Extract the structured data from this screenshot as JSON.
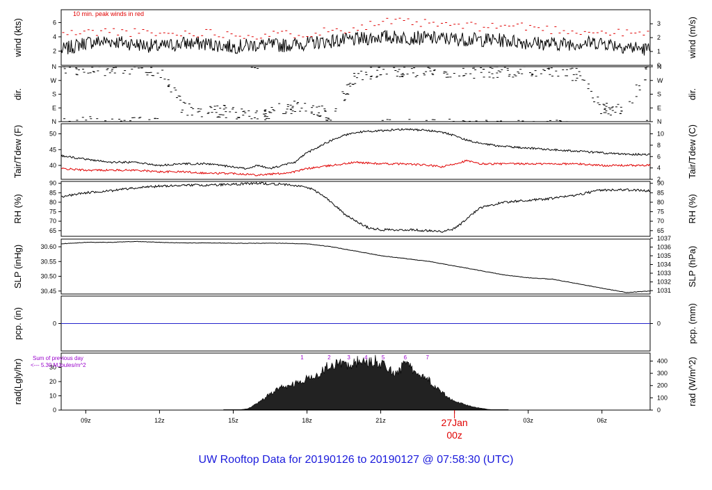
{
  "title": "UW Rooftop Data for 20190126  to  20190127 @ 07:58:30  (UTC)",
  "colors": {
    "title": "#1a1adc",
    "peak": "#e00000",
    "tdew": "#e00000",
    "pcp_line": "#2222cc",
    "annotation": "#9900cc",
    "date_marker": "#e00000",
    "trace": "#000000"
  },
  "x_axis": {
    "range_hours": [
      -16.0,
      7.96
    ],
    "ticks": [
      {
        "hour": -15,
        "label": "09z"
      },
      {
        "hour": -12,
        "label": "12z"
      },
      {
        "hour": -9,
        "label": "15z"
      },
      {
        "hour": -6,
        "label": "18z"
      },
      {
        "hour": -3,
        "label": "21z"
      },
      {
        "hour": 0,
        "label": "00z"
      },
      {
        "hour": 3,
        "label": "03z"
      },
      {
        "hour": 6,
        "label": "06z"
      }
    ],
    "date_label": "27Jan",
    "date_sublabel": "00z"
  },
  "chart_data": [
    {
      "id": "wind",
      "type": "line",
      "ylabel_left": "wind (kts)",
      "ylabel_right": "wind (m/s)",
      "ylim": [
        0,
        7.8
      ],
      "left_ticks": [
        {
          "v": 2,
          "label": "2"
        },
        {
          "v": 4,
          "label": "4"
        },
        {
          "v": 6,
          "label": "6"
        }
      ],
      "right_ticks": [
        {
          "v": 0,
          "label": "0"
        },
        {
          "v": 1.944,
          "label": "1"
        },
        {
          "v": 3.888,
          "label": "2"
        },
        {
          "v": 5.832,
          "label": "3"
        }
      ],
      "annotation": "10 min. peak winds in red",
      "series": [
        {
          "name": "",
          "x": [
            -16,
            -15,
            -14,
            -13,
            -12,
            -11,
            -10,
            -9,
            -8,
            -7,
            -6,
            -5,
            -4,
            -3,
            -2,
            -1,
            0,
            1,
            2,
            3,
            4,
            5,
            6,
            7,
            7.96
          ],
          "y": [
            2.1,
            3.2,
            3.4,
            3.0,
            2.6,
            3.1,
            3.0,
            2.6,
            2.9,
            2.8,
            3.1,
            3.4,
            3.6,
            4.0,
            3.9,
            3.8,
            3.7,
            3.6,
            3.5,
            3.2,
            3.0,
            3.1,
            3.2,
            2.6,
            2.2
          ]
        },
        {
          "name": "peak",
          "x": [
            -16,
            -14,
            -12,
            -10,
            -8,
            -6,
            -4,
            -2.8,
            -2,
            -1,
            0,
            1,
            2.5,
            4,
            6,
            7.96
          ],
          "y": [
            4.4,
            4.8,
            4.4,
            4.6,
            4.2,
            4.5,
            5.3,
            6.1,
            6.0,
            5.8,
            5.6,
            5.4,
            5.6,
            5.0,
            4.6,
            4.4
          ]
        }
      ]
    },
    {
      "id": "dir",
      "type": "scatter",
      "ylabel_left": "dir.",
      "ylabel_right": "dir.",
      "ylim": [
        0,
        360
      ],
      "left_ticks": [
        {
          "v": 0,
          "label": "N"
        },
        {
          "v": 90,
          "label": "E"
        },
        {
          "v": 180,
          "label": "S"
        },
        {
          "v": 270,
          "label": "W"
        },
        {
          "v": 360,
          "label": "N"
        }
      ],
      "right_ticks": [
        {
          "v": 0,
          "label": "N"
        },
        {
          "v": 90,
          "label": "E"
        },
        {
          "v": 180,
          "label": "S"
        },
        {
          "v": 270,
          "label": "W"
        },
        {
          "v": 360,
          "label": "N"
        }
      ],
      "series": [
        {
          "name": "",
          "x": [
            -16,
            -15,
            -14,
            -13,
            -12,
            -11,
            -10,
            -9,
            -8,
            -7,
            -6,
            -5,
            -4,
            -3,
            -2,
            -1,
            0,
            1,
            2,
            3,
            4,
            5,
            6,
            7,
            7.96
          ],
          "y": [
            340,
            350,
            345,
            350,
            340,
            80,
            70,
            60,
            30,
            90,
            100,
            40,
            300,
            330,
            340,
            330,
            335,
            320,
            340,
            330,
            330,
            310,
            80,
            90,
            360
          ]
        }
      ]
    },
    {
      "id": "temp",
      "type": "line",
      "ylabel_left": "Tair/Tdew (F)",
      "ylabel_right": "Tair/Tdew (C)",
      "ylim": [
        35.6,
        53.2
      ],
      "left_ticks": [
        {
          "v": 40,
          "label": "40"
        },
        {
          "v": 45,
          "label": "45"
        },
        {
          "v": 50,
          "label": "50"
        }
      ],
      "right_ticks": [
        {
          "v": 35.6,
          "label": "2"
        },
        {
          "v": 39.2,
          "label": "4"
        },
        {
          "v": 42.8,
          "label": "6"
        },
        {
          "v": 46.4,
          "label": "8"
        },
        {
          "v": 50.0,
          "label": "10"
        }
      ],
      "series": [
        {
          "name": "",
          "x": [
            -16,
            -15,
            -14,
            -13,
            -12,
            -11,
            -10,
            -9,
            -8.5,
            -8,
            -7.5,
            -7,
            -6.5,
            -6,
            -5.5,
            -5,
            -4.5,
            -4,
            -3,
            -2,
            -1,
            -0.5,
            0,
            0.5,
            1,
            2,
            3,
            4,
            5,
            6,
            7,
            7.96
          ],
          "y": [
            43.0,
            42.0,
            41.0,
            41.0,
            40.0,
            40.5,
            40.5,
            39.5,
            39.0,
            40.0,
            39.0,
            40.0,
            41.0,
            44.0,
            46.0,
            48.0,
            49.5,
            50.5,
            51.0,
            51.5,
            51.0,
            50.5,
            49.5,
            48.0,
            47.0,
            46.0,
            45.5,
            45.0,
            44.5,
            44.0,
            43.5,
            43.5
          ]
        },
        {
          "name": "",
          "x": [
            -16,
            -15,
            -14,
            -13,
            -12,
            -11,
            -10,
            -9,
            -8,
            -7,
            -6.5,
            -6,
            -5,
            -4,
            -3,
            -2,
            -1,
            -0.5,
            0,
            0.5,
            1,
            2,
            3,
            4,
            5,
            6,
            7,
            7.96
          ],
          "y": [
            39.0,
            38.5,
            38.5,
            38.5,
            38.0,
            38.0,
            37.5,
            37.5,
            37.0,
            37.5,
            38.0,
            39.0,
            40.0,
            41.0,
            40.5,
            40.5,
            40.0,
            39.5,
            40.5,
            41.5,
            40.5,
            40.5,
            40.5,
            40.5,
            40.5,
            40.0,
            40.0,
            40.0
          ]
        }
      ]
    },
    {
      "id": "rh",
      "type": "line",
      "ylabel_left": "RH (%)",
      "ylabel_right": "RH (%)",
      "ylim": [
        62,
        91
      ],
      "left_ticks": [
        {
          "v": 65,
          "label": "65"
        },
        {
          "v": 70,
          "label": "70"
        },
        {
          "v": 75,
          "label": "75"
        },
        {
          "v": 80,
          "label": "80"
        },
        {
          "v": 85,
          "label": "85"
        },
        {
          "v": 90,
          "label": "90"
        }
      ],
      "right_ticks": [
        {
          "v": 65,
          "label": "65"
        },
        {
          "v": 70,
          "label": "70"
        },
        {
          "v": 75,
          "label": "75"
        },
        {
          "v": 80,
          "label": "80"
        },
        {
          "v": 85,
          "label": "85"
        },
        {
          "v": 90,
          "label": "90"
        }
      ],
      "series": [
        {
          "name": "",
          "x": [
            -16,
            -15,
            -14,
            -13,
            -12,
            -11,
            -10,
            -9,
            -8,
            -7,
            -6,
            -5.5,
            -5,
            -4.5,
            -4,
            -3.5,
            -3,
            -2,
            -1,
            -0.5,
            0,
            0.5,
            1,
            2,
            3,
            4,
            5,
            6,
            7,
            7.96
          ],
          "y": [
            83.0,
            85.0,
            86.0,
            87.5,
            88.5,
            89.0,
            89.0,
            89.5,
            90.0,
            89.5,
            88.0,
            85.0,
            80.0,
            74.0,
            70.0,
            66.5,
            65.5,
            65.5,
            65.0,
            64.5,
            66.0,
            71.0,
            77.0,
            80.0,
            81.0,
            82.0,
            84.0,
            86.5,
            86.5,
            86.0
          ]
        }
      ]
    },
    {
      "id": "slp",
      "type": "line",
      "ylabel_left": "SLP (inHg)",
      "ylabel_right": "SLP (hPa)",
      "ylim": [
        30.44,
        30.626
      ],
      "left_ticks": [
        {
          "v": 30.45,
          "label": "30.45"
        },
        {
          "v": 30.5,
          "label": "30.50"
        },
        {
          "v": 30.55,
          "label": "30.55"
        },
        {
          "v": 30.6,
          "label": "30.60"
        }
      ],
      "right_ticks": [
        {
          "v": 30.4514,
          "label": "1031"
        },
        {
          "v": 30.4809,
          "label": "1032"
        },
        {
          "v": 30.5105,
          "label": "1033"
        },
        {
          "v": 30.54,
          "label": "1034"
        },
        {
          "v": 30.5695,
          "label": "1035"
        },
        {
          "v": 30.5991,
          "label": "1036"
        },
        {
          "v": 30.6286,
          "label": "1037"
        }
      ],
      "series": [
        {
          "name": "",
          "x": [
            -16,
            -15,
            -14,
            -13,
            -12,
            -11,
            -10,
            -9,
            -8,
            -7,
            -6,
            -5,
            -4,
            -3,
            -2,
            -1,
            0,
            1,
            2,
            3,
            4,
            5,
            6,
            7,
            7.96
          ],
          "y": [
            30.61,
            30.615,
            30.615,
            30.618,
            30.615,
            30.613,
            30.613,
            30.612,
            30.612,
            30.612,
            30.61,
            30.6,
            30.585,
            30.57,
            30.56,
            30.55,
            30.535,
            30.52,
            30.505,
            30.495,
            30.49,
            30.475,
            30.46,
            30.445,
            30.45
          ]
        }
      ]
    },
    {
      "id": "pcp",
      "type": "line",
      "ylabel_left": "pcp. (in)",
      "ylabel_right": "pcp. (mm)",
      "ylim": [
        -1,
        1
      ],
      "left_ticks": [
        {
          "v": 0,
          "label": "0"
        }
      ],
      "right_ticks": [
        {
          "v": 0,
          "label": "0"
        }
      ],
      "series": [
        {
          "name": "",
          "x": [
            -16,
            7.96
          ],
          "y": [
            0,
            0
          ]
        }
      ]
    },
    {
      "id": "rad",
      "type": "area",
      "ylabel_left": "rad(Lgly/hr)",
      "ylabel_right": "rad (W/m^2)",
      "ylim": [
        0,
        40
      ],
      "left_ticks": [
        {
          "v": 0,
          "label": "0"
        },
        {
          "v": 10,
          "label": "10"
        },
        {
          "v": 20,
          "label": "20"
        },
        {
          "v": 30,
          "label": "30"
        }
      ],
      "right_ticks": [
        {
          "v": 0,
          "label": "0"
        },
        {
          "v": 8.6,
          "label": "100"
        },
        {
          "v": 17.2,
          "label": "200"
        },
        {
          "v": 25.8,
          "label": "300"
        },
        {
          "v": 34.4,
          "label": "400"
        }
      ],
      "annotation_line1": "Sum of previous day",
      "annotation_line2": "<--- 5.30 MJoules/m^2",
      "hour_markers": [
        {
          "hour": -6.2,
          "label": "1"
        },
        {
          "hour": -5.1,
          "label": "2"
        },
        {
          "hour": -4.3,
          "label": "3"
        },
        {
          "hour": -3.6,
          "label": "4"
        },
        {
          "hour": -2.9,
          "label": "5"
        },
        {
          "hour": -2.0,
          "label": "6"
        },
        {
          "hour": -1.1,
          "label": "7"
        }
      ],
      "series": [
        {
          "name": "",
          "x": [
            -8.8,
            -8.4,
            -8.0,
            -7.6,
            -7.2,
            -6.8,
            -6.4,
            -6.0,
            -5.6,
            -5.2,
            -4.8,
            -4.4,
            -4.0,
            -3.6,
            -3.2,
            -2.8,
            -2.4,
            -2.0,
            -1.6,
            -1.2,
            -0.8,
            -0.4,
            0.0,
            0.4,
            0.8,
            1.2,
            1.6
          ],
          "y": [
            0,
            1,
            5,
            10,
            15,
            17,
            19,
            22,
            24,
            31,
            33,
            31,
            34,
            33,
            35,
            30,
            26,
            32,
            28,
            24,
            16,
            11,
            6,
            4,
            2,
            1,
            0
          ]
        }
      ]
    }
  ]
}
